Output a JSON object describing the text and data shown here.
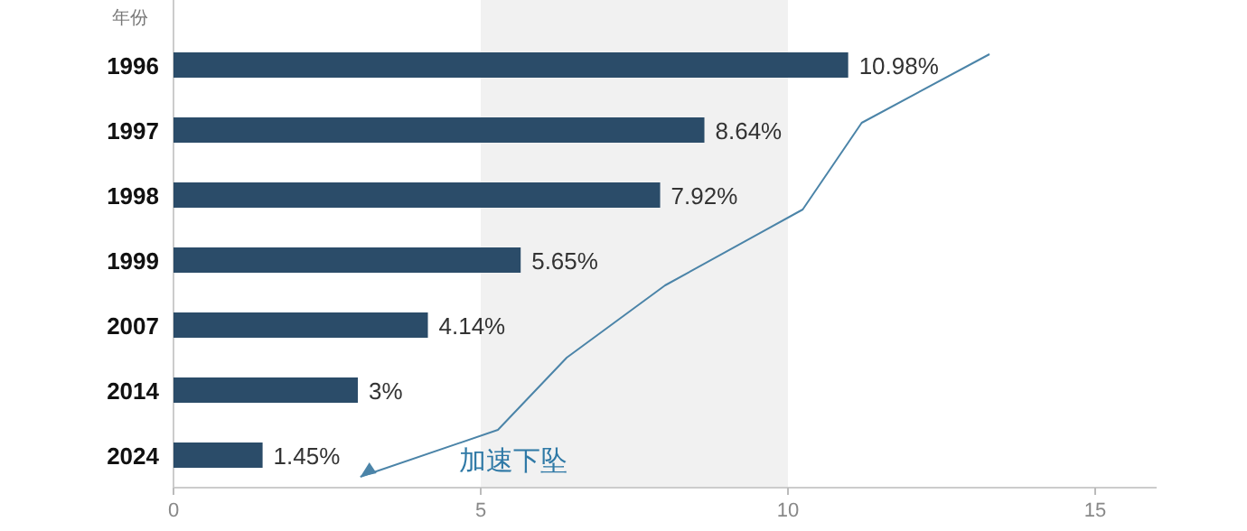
{
  "chart_data": {
    "type": "bar",
    "orientation": "horizontal",
    "ylabel": "年份",
    "categories": [
      "1996",
      "1997",
      "1998",
      "1999",
      "2007",
      "2014",
      "2024"
    ],
    "values": [
      10.98,
      8.64,
      7.92,
      5.65,
      4.14,
      3,
      1.45
    ],
    "value_labels": [
      "10.98%",
      "8.64%",
      "7.92%",
      "5.65%",
      "4.14%",
      "3%",
      "1.45%"
    ],
    "color": "#2b4c69",
    "xlim": [
      0,
      16
    ],
    "xticks": [
      0,
      5,
      10,
      15
    ],
    "bands": [
      {
        "axis": "x",
        "from": 5,
        "to": 10,
        "color": "#f1f1f1"
      }
    ],
    "annotations": [
      "加速下坠"
    ],
    "grid": false
  }
}
